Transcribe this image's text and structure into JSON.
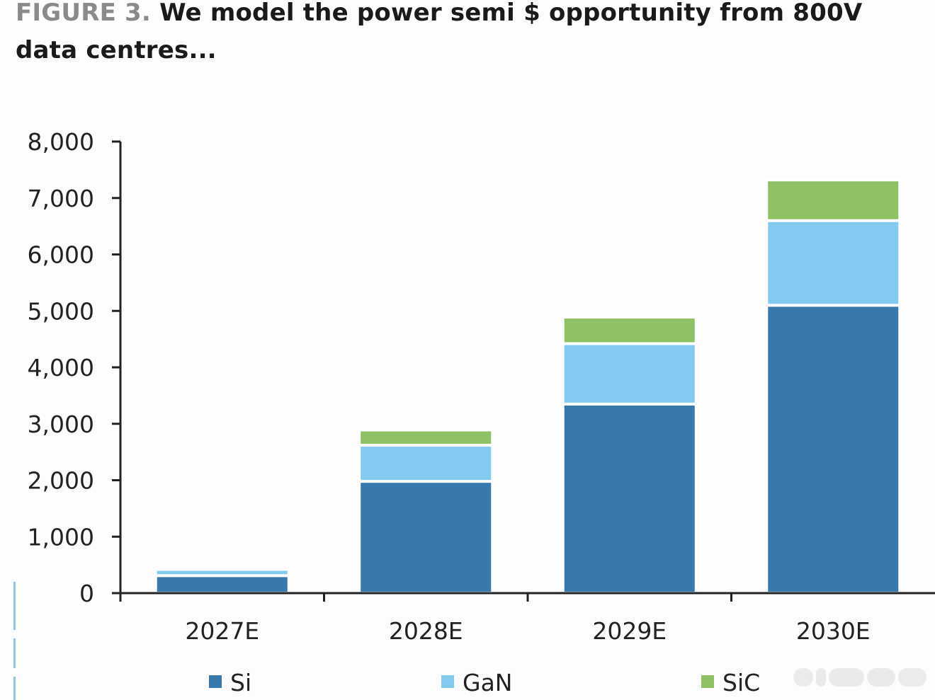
{
  "figure_label": "FIGURE 3.",
  "title_text": "We model the power semi $ opportunity from 800V data centres...",
  "chart_data": {
    "type": "bar",
    "stacked": true,
    "title": "We model the power semi $ opportunity from 800V data centres...",
    "xlabel": "",
    "ylabel": "",
    "categories": [
      "2027E",
      "2028E",
      "2029E",
      "2030E"
    ],
    "series": [
      {
        "name": "Si",
        "color": "#3778ad",
        "values": [
          310,
          1980,
          3350,
          5100
        ]
      },
      {
        "name": "GaN",
        "color": "#82caf0",
        "values": [
          110,
          640,
          1070,
          1500
        ]
      },
      {
        "name": "SiC",
        "color": "#8ec163",
        "values": [
          0,
          270,
          470,
          720
        ]
      }
    ],
    "ylim": [
      0,
      8000
    ],
    "yticks": [
      0,
      1000,
      2000,
      3000,
      4000,
      5000,
      6000,
      7000,
      8000
    ],
    "ytick_labels": [
      "0",
      "1,000",
      "2,000",
      "3,000",
      "4,000",
      "5,000",
      "6,000",
      "7,000",
      "8,000"
    ],
    "grid": false,
    "legend_position": "bottom"
  }
}
